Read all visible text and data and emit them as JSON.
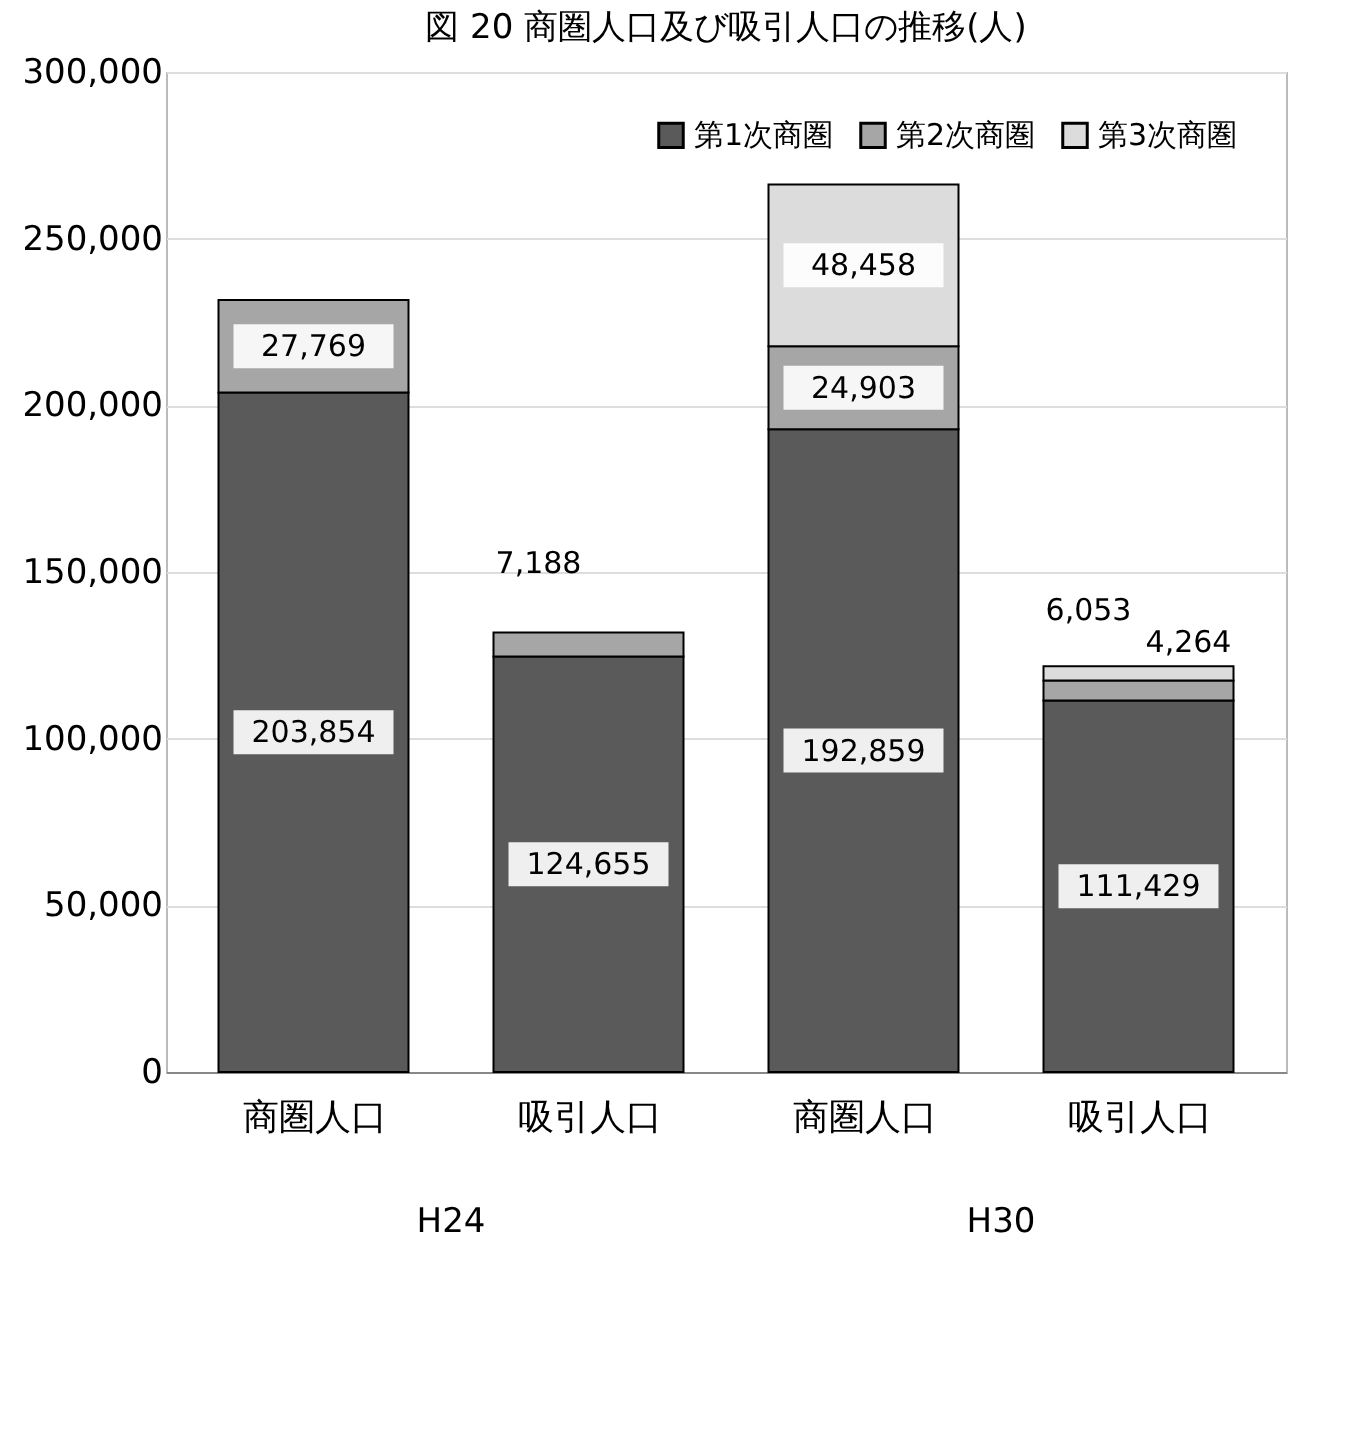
{
  "chart_data": {
    "type": "bar",
    "title": "図 20 商圏人口及び吸引人口の推移(人)",
    "categories": [
      "商圏人口",
      "吸引人口",
      "商圏人口",
      "吸引人口"
    ],
    "stacked": true,
    "series": [
      {
        "name": "第1次商圏",
        "color": "#5a5a5a",
        "values": [
          203854,
          124655,
          192859,
          111429
        ],
        "value_labels": [
          "203,854",
          "124,655",
          "192,859",
          "111,429"
        ]
      },
      {
        "name": "第2次商圏",
        "color": "#a6a6a6",
        "values": [
          27769,
          7188,
          24903,
          6053
        ],
        "value_labels": [
          "27,769",
          "7,188",
          "24,903",
          "6,053"
        ]
      },
      {
        "name": "第3次商圏",
        "color": "#dcdcdc",
        "values": [
          null,
          null,
          48458,
          4264
        ],
        "value_labels": [
          null,
          null,
          "48,458",
          "4,264"
        ]
      }
    ],
    "ylim": [
      0,
      300000
    ],
    "yticks": [
      0,
      {
        "value": 50000,
        "label": "50,000"
      },
      {
        "value": 100000,
        "label": "100,000"
      },
      {
        "value": 150000,
        "label": "150,000"
      },
      {
        "value": 200000,
        "label": "200,000"
      },
      {
        "value": 250000,
        "label": "250,000"
      },
      {
        "value": 300000,
        "label": "300,000"
      }
    ],
    "grid": "y",
    "legend": "top right",
    "annotations": [
      "H24",
      "H30"
    ]
  }
}
